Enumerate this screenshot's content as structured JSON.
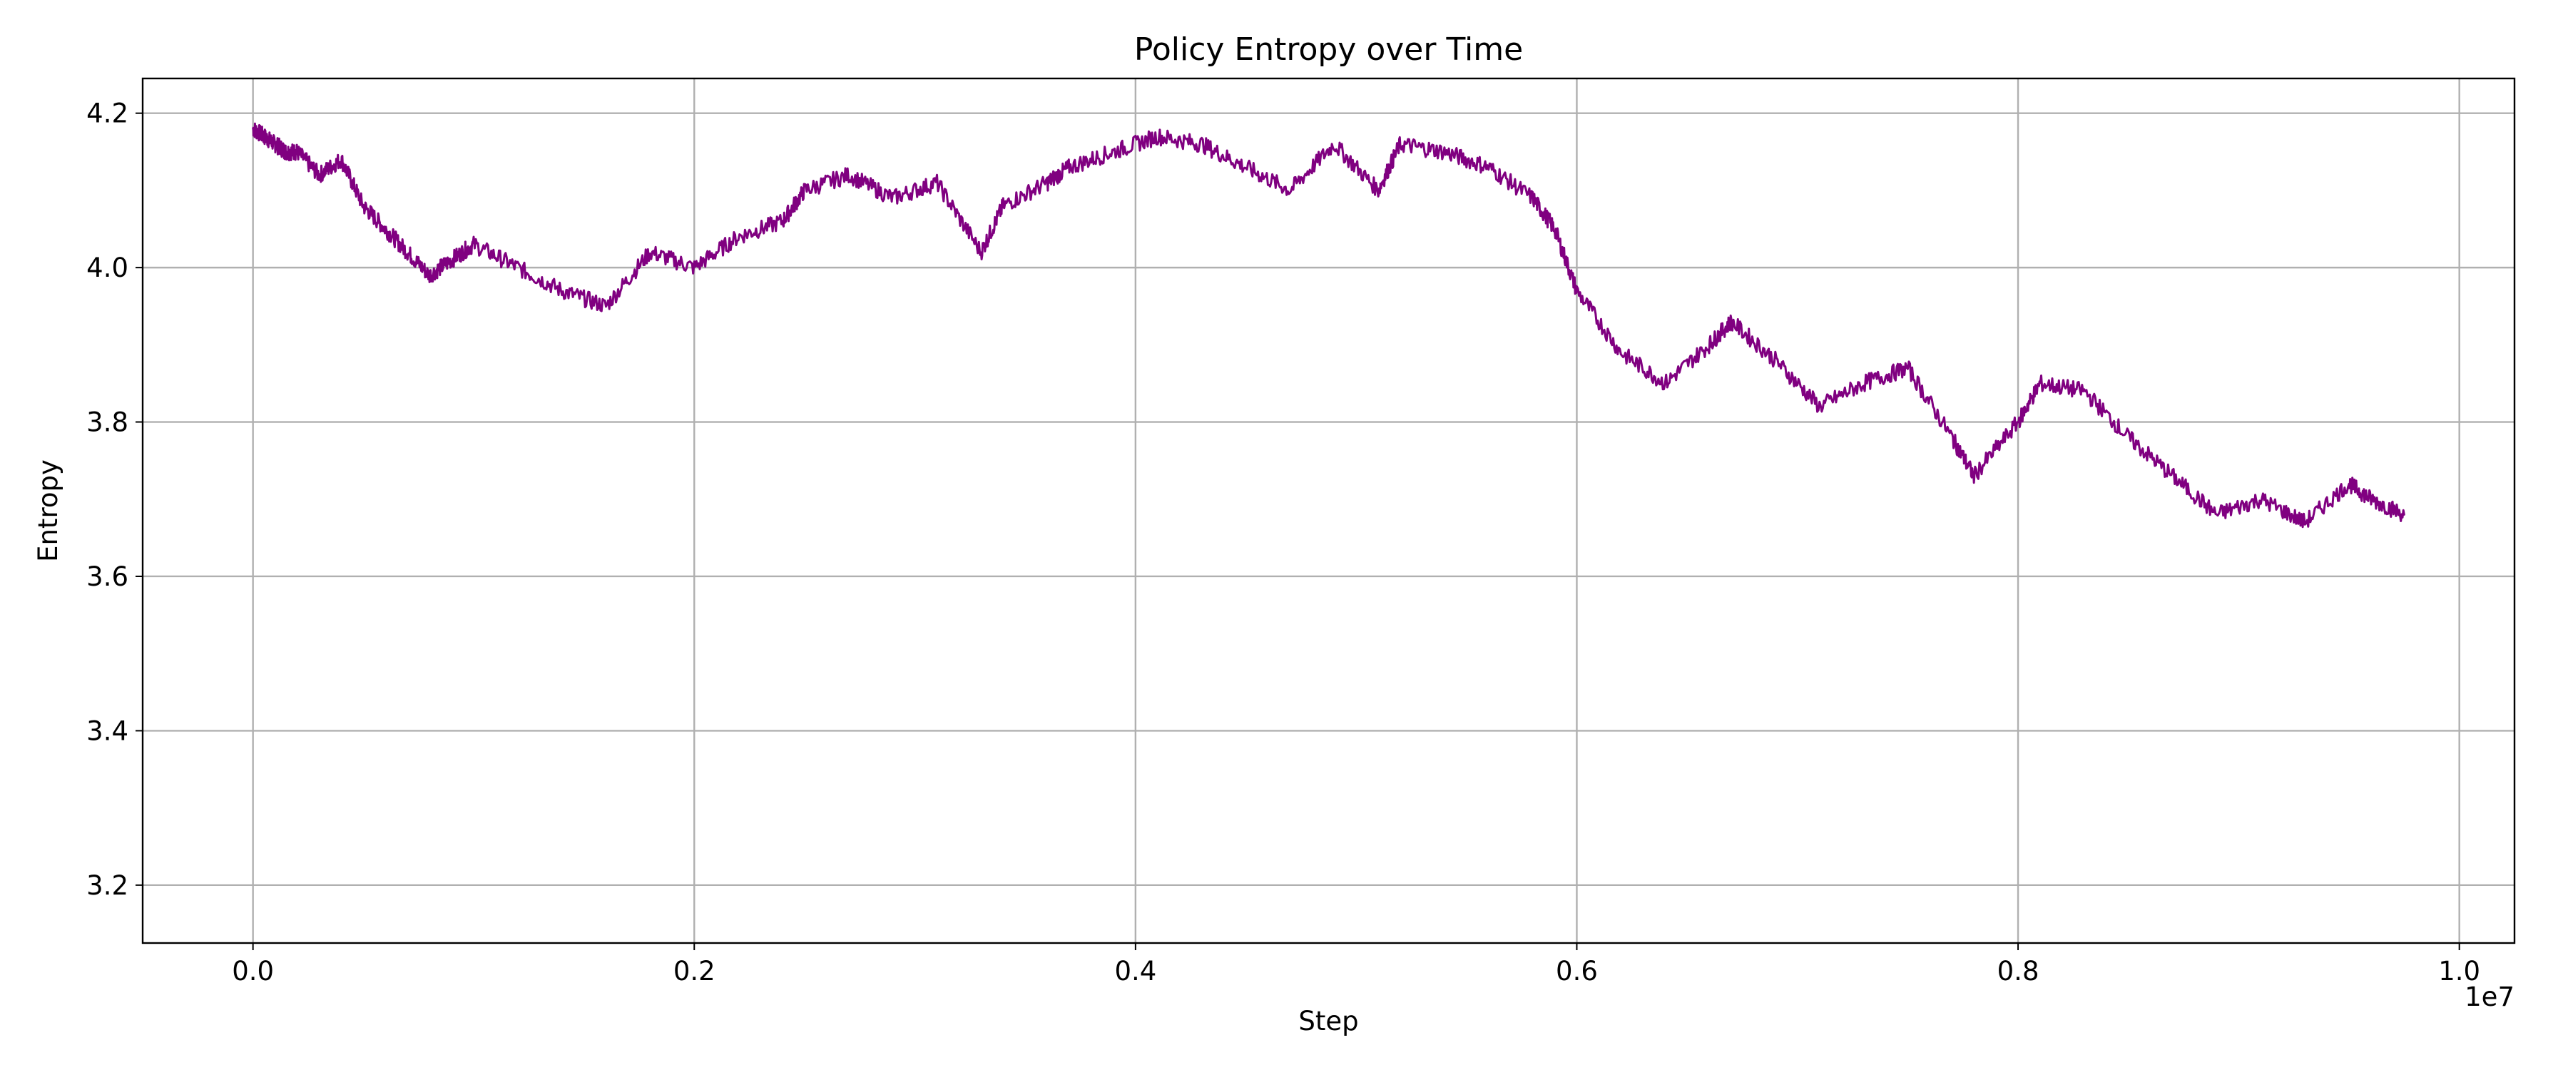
{
  "chart_data": {
    "type": "line",
    "title": "Policy Entropy over Time",
    "xlabel": "Step",
    "ylabel": "Entropy",
    "x_offset_label": "1e7",
    "xlim": [
      -0.05,
      1.025
    ],
    "ylim": [
      3.125,
      4.245
    ],
    "xticks": [
      0.0,
      0.2,
      0.4,
      0.6,
      0.8,
      1.0
    ],
    "xtick_labels": [
      "0.0",
      "0.2",
      "0.4",
      "0.6",
      "0.8",
      "1.0"
    ],
    "yticks": [
      3.2,
      3.4,
      3.6,
      3.8,
      4.0,
      4.2
    ],
    "ytick_labels": [
      "3.2",
      "3.4",
      "3.6",
      "3.8",
      "4.0",
      "4.2"
    ],
    "grid": true,
    "legend": "none",
    "series": [
      {
        "color": "#800080",
        "x": [
          0.0,
          0.005,
          0.01,
          0.015,
          0.02,
          0.03,
          0.04,
          0.05,
          0.06,
          0.07,
          0.08,
          0.09,
          0.1,
          0.12,
          0.14,
          0.16,
          0.18,
          0.2,
          0.22,
          0.24,
          0.25,
          0.27,
          0.29,
          0.31,
          0.33,
          0.34,
          0.36,
          0.37,
          0.39,
          0.41,
          0.43,
          0.45,
          0.47,
          0.49,
          0.51,
          0.52,
          0.54,
          0.56,
          0.58,
          0.59,
          0.6,
          0.62,
          0.64,
          0.66,
          0.67,
          0.69,
          0.71,
          0.73,
          0.75,
          0.77,
          0.78,
          0.8,
          0.81,
          0.83,
          0.85,
          0.87,
          0.89,
          0.91,
          0.93,
          0.95,
          0.96,
          0.975
        ],
        "y": [
          4.18,
          4.17,
          4.16,
          4.15,
          4.15,
          4.12,
          4.14,
          4.08,
          4.05,
          4.02,
          3.99,
          4.01,
          4.03,
          4.0,
          3.97,
          3.95,
          4.02,
          4.0,
          4.04,
          4.06,
          4.1,
          4.12,
          4.09,
          4.11,
          4.02,
          4.08,
          4.11,
          4.13,
          4.15,
          4.17,
          4.16,
          4.13,
          4.1,
          4.16,
          4.1,
          4.16,
          4.15,
          4.13,
          4.09,
          4.05,
          3.97,
          3.89,
          3.85,
          3.9,
          3.93,
          3.88,
          3.82,
          3.85,
          3.87,
          3.78,
          3.73,
          3.8,
          3.85,
          3.84,
          3.78,
          3.73,
          3.68,
          3.7,
          3.67,
          3.72,
          3.7,
          3.68
        ]
      }
    ]
  }
}
